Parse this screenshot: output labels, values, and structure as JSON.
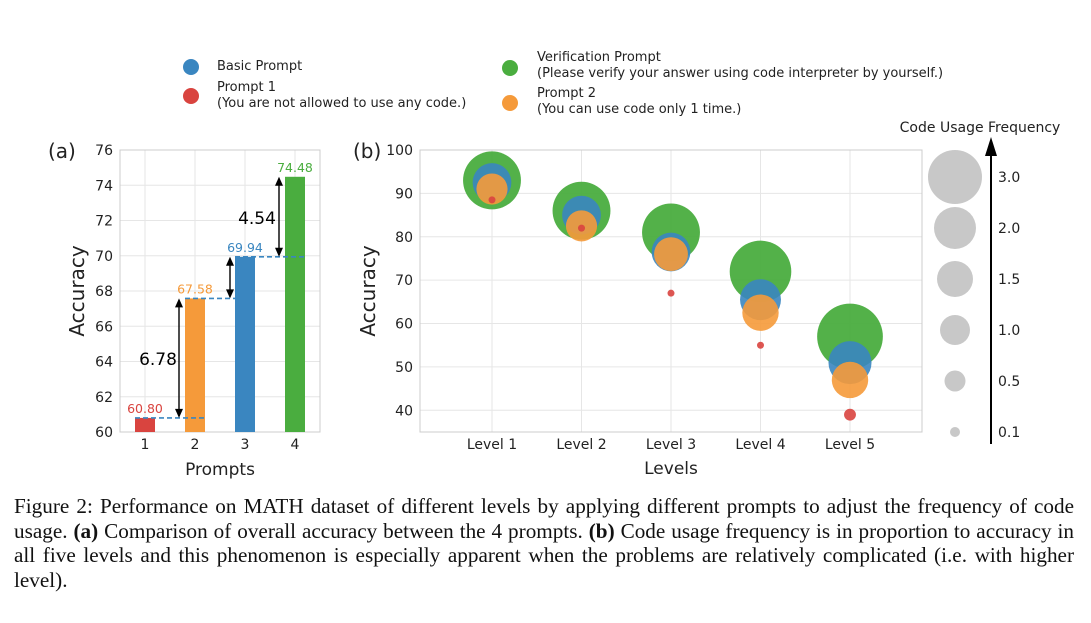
{
  "legend": {
    "basic": {
      "label": "Basic Prompt",
      "color": "#3a86c0"
    },
    "prompt1": {
      "label": "Prompt 1",
      "sub": "(You are not allowed to use any code.)",
      "color": "#d9443f"
    },
    "verification": {
      "label": "Verification Prompt",
      "sub": "(Please verify your answer using code interpreter by yourself.)",
      "color": "#4aad3f"
    },
    "prompt2": {
      "label": "Prompt 2",
      "sub": "(You can use code only 1 time.)",
      "color": "#f59a3a"
    }
  },
  "chart_data": [
    {
      "panel": "(a)",
      "type": "bar",
      "categories": [
        "1",
        "2",
        "3",
        "4"
      ],
      "values": [
        60.8,
        67.58,
        69.94,
        74.48
      ],
      "value_labels": [
        "60.80",
        "67.58",
        "69.94",
        "74.48"
      ],
      "colors": [
        "#d9443f",
        "#f59a3a",
        "#3a86c0",
        "#4aad3f"
      ],
      "xlabel": "Prompts",
      "ylabel": "Accuracy",
      "ylim": [
        60,
        76
      ],
      "yticks": [
        60,
        62,
        64,
        66,
        68,
        70,
        72,
        74,
        76
      ],
      "annotations": [
        {
          "text": "6.78",
          "from": 60.8,
          "to": 67.58
        },
        {
          "text": "4.54",
          "from": 69.94,
          "to": 74.48
        }
      ]
    },
    {
      "panel": "(b)",
      "type": "scatter",
      "categories": [
        "Level 1",
        "Level 2",
        "Level 3",
        "Level 4",
        "Level 5"
      ],
      "xlabel": "Levels",
      "ylabel": "Accuracy",
      "ylim": [
        35,
        100
      ],
      "yticks": [
        40,
        50,
        60,
        70,
        80,
        90,
        100
      ],
      "series": [
        {
          "name": "Verification Prompt",
          "color": "#4aad3f",
          "values": [
            93,
            86,
            81,
            72,
            57
          ],
          "code_usage": [
            1.9,
            1.9,
            1.9,
            2.15,
            2.45
          ]
        },
        {
          "name": "Basic Prompt",
          "color": "#3a86c0",
          "values": [
            92.5,
            85,
            76.5,
            65.5,
            51
          ],
          "code_usage": [
            0.85,
            0.85,
            0.85,
            0.95,
            1.05
          ]
        },
        {
          "name": "Prompt 2",
          "color": "#f59a3a",
          "values": [
            91,
            82.5,
            76,
            62.5,
            47
          ],
          "code_usage": [
            0.55,
            0.55,
            0.65,
            0.75,
            0.75
          ]
        },
        {
          "name": "Prompt 1",
          "color": "#d9443f",
          "values": [
            88.5,
            82,
            67,
            55,
            39
          ],
          "code_usage": [
            0.02,
            0.02,
            0.02,
            0.02,
            0.08
          ]
        }
      ]
    }
  ],
  "size_legend": {
    "title": "Code Usage Frequency",
    "labels": [
      "3.0",
      "2.0",
      "1.5",
      "1.0",
      "0.5",
      "0.1"
    ]
  },
  "caption": {
    "fig_label": "Figure 2:",
    "text1": " Performance on MATH dataset of different levels by applying different prompts to adjust the frequency of code usage. ",
    "a_label": "(a)",
    "text2": " Comparison of overall accuracy between the 4 prompts. ",
    "b_label": "(b)",
    "text3": " Code usage frequency is in proportion to accuracy in all five levels and this phenomenon is especially apparent when the problems are relatively complicated  (i.e. with higher level)."
  }
}
